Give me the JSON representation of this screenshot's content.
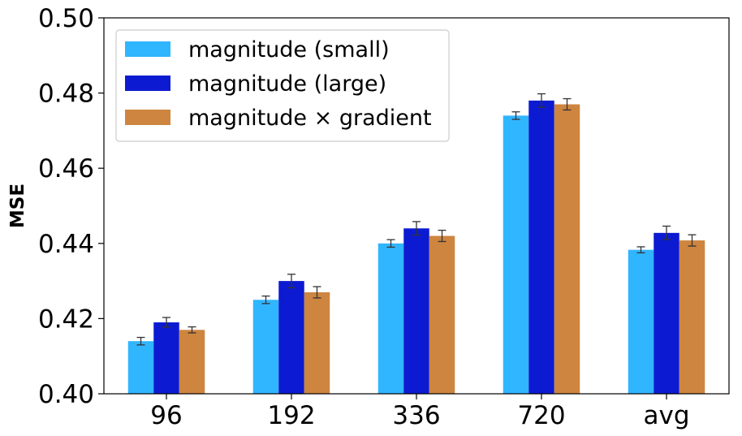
{
  "chart_data": {
    "type": "bar",
    "title": "",
    "xlabel": "",
    "ylabel": "MSE",
    "ylim": [
      0.4,
      0.5
    ],
    "yticks": [
      "0.40",
      "0.42",
      "0.44",
      "0.46",
      "0.48",
      "0.50"
    ],
    "categories": [
      "96",
      "192",
      "336",
      "720",
      "avg"
    ],
    "grid": false,
    "legend_position": "top-left",
    "series": [
      {
        "name": "magnitude (small)",
        "color": "#30b5ff",
        "values": [
          0.414,
          0.425,
          0.44,
          0.474,
          0.4383
        ],
        "errors": [
          0.001,
          0.001,
          0.001,
          0.001,
          0.0008
        ]
      },
      {
        "name": "magnitude (large)",
        "color": "#0c1bd1",
        "values": [
          0.419,
          0.43,
          0.444,
          0.478,
          0.4428
        ],
        "errors": [
          0.0013,
          0.0018,
          0.0018,
          0.0018,
          0.0018
        ]
      },
      {
        "name": "magnitude × gradient",
        "color": "#cd853f",
        "values": [
          0.417,
          0.427,
          0.442,
          0.477,
          0.4408
        ],
        "errors": [
          0.0008,
          0.0015,
          0.0015,
          0.0015,
          0.0015
        ]
      }
    ]
  }
}
